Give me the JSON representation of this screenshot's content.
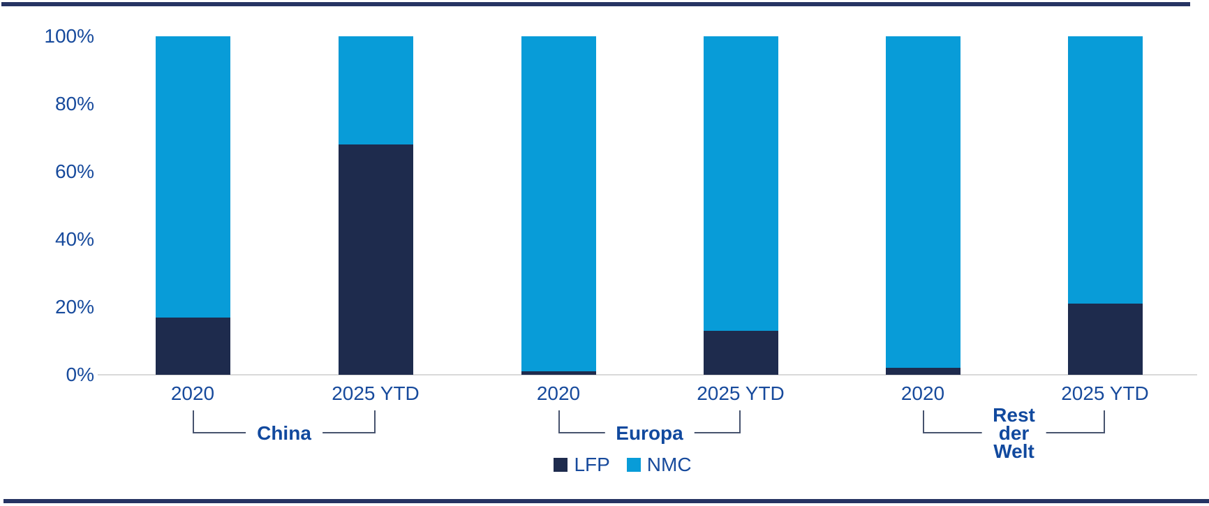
{
  "chart_data": {
    "type": "bar",
    "stacked": true,
    "percent_stacked": true,
    "title": "",
    "xlabel": "",
    "ylabel": "",
    "categories": [
      "2020",
      "2025 YTD",
      "2020",
      "2025 YTD",
      "2020",
      "2025 YTD"
    ],
    "groups": [
      {
        "label_lines": [
          "China"
        ],
        "bars": [
          0,
          1
        ]
      },
      {
        "label_lines": [
          "Europa"
        ],
        "bars": [
          2,
          3
        ]
      },
      {
        "label_lines": [
          "Rest",
          "der",
          "Welt"
        ],
        "bars": [
          4,
          5
        ]
      }
    ],
    "series": [
      {
        "name": "LFP",
        "color": "#1E2B4D",
        "values": [
          17,
          68,
          1,
          13,
          2,
          21
        ]
      },
      {
        "name": "NMC",
        "color": "#089CD8",
        "values": [
          83,
          32,
          99,
          87,
          98,
          79
        ]
      }
    ],
    "yticks": [
      0,
      20,
      40,
      60,
      80,
      100
    ],
    "ytick_suffix": "%",
    "ylim": [
      0,
      100
    ],
    "grid": false,
    "legend_position": "bottom-center"
  },
  "colors": {
    "axis_text": "#174A9C",
    "group_label_text": "#11499E",
    "bracket_line": "#47536E",
    "baseline": "#D9D9D9",
    "border_line": "#263463",
    "background": "#FFFFFF"
  }
}
